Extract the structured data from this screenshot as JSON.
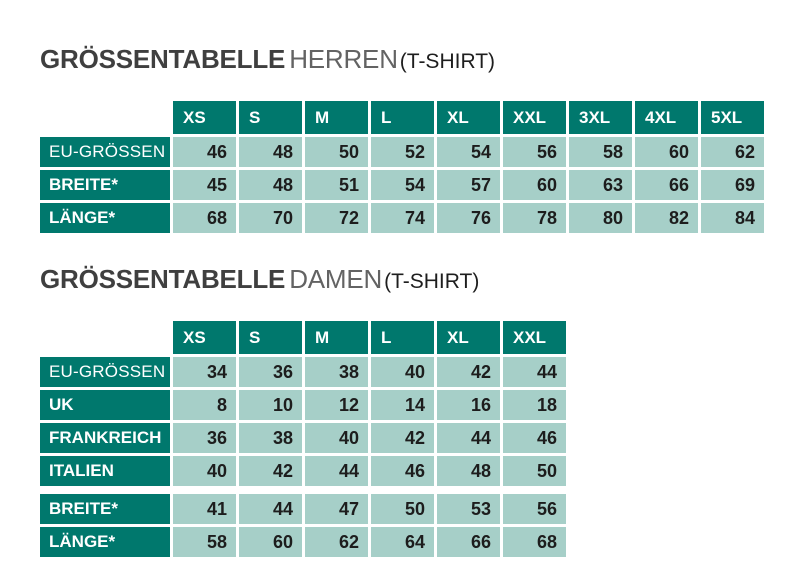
{
  "colors": {
    "table_header_bg": "#00786d",
    "cell_bg": "#a6cfc8",
    "header_text": "#ffffff",
    "cell_text": "#1d1d1d",
    "title_strong": "#3f3f3f",
    "title_light": "#636363",
    "title_suffix": "#1e1e1e"
  },
  "chart_data": [
    {
      "type": "table",
      "title": {
        "strong": "GRÖSSENTABELLE",
        "light": "HERREN",
        "suffix": "(T-SHIRT)"
      },
      "columns": [
        "XS",
        "S",
        "M",
        "L",
        "XL",
        "XXL",
        "3XL",
        "4XL",
        "5XL"
      ],
      "rows": [
        {
          "label": "EU-GRÖSSEN",
          "emphasis": "regular",
          "values": [
            46,
            48,
            50,
            52,
            54,
            56,
            58,
            60,
            62
          ]
        },
        {
          "label": "BREITE*",
          "emphasis": "bold",
          "values": [
            45,
            48,
            51,
            54,
            57,
            60,
            63,
            66,
            69
          ]
        },
        {
          "label": "LÄNGE*",
          "emphasis": "bold",
          "values": [
            68,
            70,
            72,
            74,
            76,
            78,
            80,
            82,
            84
          ]
        }
      ]
    },
    {
      "type": "table",
      "title": {
        "strong": "GRÖSSENTABELLE",
        "light": "DAMEN",
        "suffix": "(T-SHIRT)"
      },
      "columns": [
        "XS",
        "S",
        "M",
        "L",
        "XL",
        "XXL"
      ],
      "rows": [
        {
          "label": "EU-GRÖSSEN",
          "emphasis": "regular",
          "values": [
            34,
            36,
            38,
            40,
            42,
            44
          ]
        },
        {
          "label": "UK",
          "emphasis": "bold",
          "values": [
            8,
            10,
            12,
            14,
            16,
            18
          ]
        },
        {
          "label": "FRANKREICH",
          "emphasis": "bold",
          "values": [
            36,
            38,
            40,
            42,
            44,
            46
          ]
        },
        {
          "label": "ITALIEN",
          "emphasis": "bold",
          "values": [
            40,
            42,
            44,
            46,
            48,
            50
          ],
          "group_break": true
        },
        {
          "label": "BREITE*",
          "emphasis": "bold",
          "values": [
            41,
            44,
            47,
            50,
            53,
            56
          ]
        },
        {
          "label": "LÄNGE*",
          "emphasis": "bold",
          "values": [
            58,
            60,
            62,
            64,
            66,
            68
          ]
        }
      ]
    }
  ]
}
